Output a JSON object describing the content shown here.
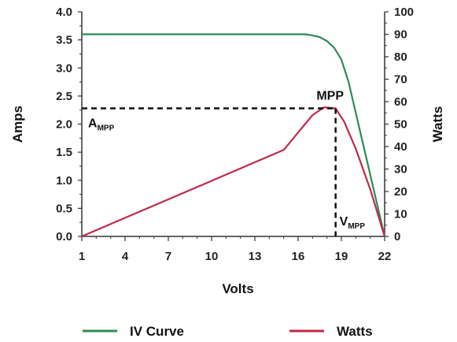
{
  "chart_data": {
    "type": "line",
    "xlabel": "Volts",
    "ylabel_left": "Amps",
    "ylabel_right": "Watts",
    "x_ticks": [
      1,
      4,
      7,
      10,
      13,
      16,
      19,
      22
    ],
    "xlim": [
      1,
      22
    ],
    "ylim_left": [
      0,
      4.0
    ],
    "ylim_right": [
      0,
      100
    ],
    "y_left_ticks": [
      "0.0",
      "0.5",
      "1.0",
      "1.5",
      "2.0",
      "2.5",
      "3.0",
      "3.5",
      "4.0"
    ],
    "y_right_ticks": [
      "0",
      "10",
      "20",
      "30",
      "40",
      "50",
      "60",
      "70",
      "80",
      "90",
      "100"
    ],
    "series": [
      {
        "name": "IV Curve",
        "axis": "left",
        "color": "#2e8b57",
        "points": [
          [
            1,
            3.6
          ],
          [
            16,
            3.6
          ],
          [
            16.5,
            3.6
          ],
          [
            17,
            3.58
          ],
          [
            17.5,
            3.55
          ],
          [
            18,
            3.48
          ],
          [
            18.5,
            3.36
          ],
          [
            19,
            3.15
          ],
          [
            19.5,
            2.75
          ],
          [
            20,
            2.2
          ],
          [
            20.5,
            1.65
          ],
          [
            21,
            1.1
          ],
          [
            21.5,
            0.55
          ],
          [
            22,
            0.0
          ]
        ]
      },
      {
        "name": "Watts",
        "axis": "right",
        "color": "#c0284a",
        "points": [
          [
            1,
            0
          ],
          [
            3,
            5.5
          ],
          [
            5,
            11
          ],
          [
            7,
            16.5
          ],
          [
            9,
            22
          ],
          [
            11,
            27.5
          ],
          [
            13,
            33
          ],
          [
            15,
            38.5
          ],
          [
            17,
            54
          ],
          [
            17.8,
            57.5
          ],
          [
            18.6,
            57
          ],
          [
            19.2,
            51
          ],
          [
            20,
            39
          ],
          [
            21,
            21
          ],
          [
            22,
            0
          ]
        ]
      }
    ],
    "mpp": {
      "volts": 18.6,
      "amps": 2.28
    },
    "annotations": {
      "mpp_label": "MPP",
      "a_mpp_main": "A",
      "a_mpp_sub": "MPP",
      "v_mpp_main": "V",
      "v_mpp_sub": "MPP"
    },
    "legend": {
      "placement": "bottom",
      "items": [
        {
          "label": "IV Curve",
          "color": "#2e8b57"
        },
        {
          "label": "Watts",
          "color": "#c0284a"
        }
      ]
    }
  }
}
